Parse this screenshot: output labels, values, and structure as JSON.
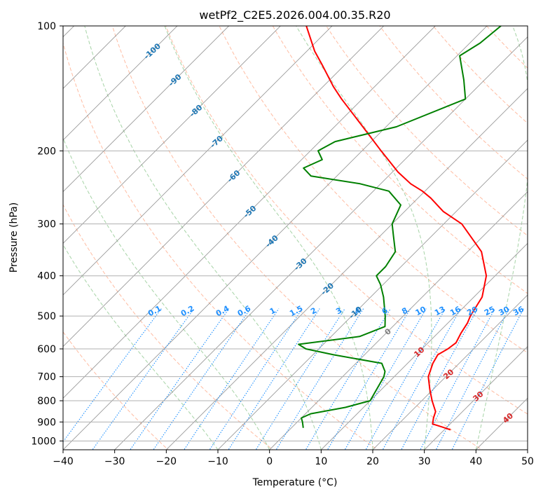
{
  "chart_data": {
    "type": "line",
    "title": "wetPf2_C2E5.2026.004.00.35.R20",
    "xlabel": "Temperature (°C)",
    "ylabel": "Pressure (hPa)",
    "xlim": [
      -40,
      50
    ],
    "ylim": [
      1050,
      100
    ],
    "y_scale": "log",
    "grid": true,
    "x_ticks": [
      "−40",
      "−30",
      "−20",
      "−10",
      "0",
      "10",
      "20",
      "30",
      "40",
      "50"
    ],
    "x_tick_values": [
      -40,
      -30,
      -20,
      -10,
      0,
      10,
      20,
      30,
      40,
      50
    ],
    "y_ticks": [
      "100",
      "200",
      "300",
      "400",
      "500",
      "600",
      "700",
      "800",
      "900",
      "1000"
    ],
    "y_tick_values": [
      100,
      200,
      300,
      400,
      500,
      600,
      700,
      800,
      900,
      1000
    ],
    "series": [
      {
        "role": "temperature",
        "color": "#ff0000",
        "points": [
          [
            940,
            31.2
          ],
          [
            925,
            29.0
          ],
          [
            910,
            26.6
          ],
          [
            880,
            25.6
          ],
          [
            850,
            24.8
          ],
          [
            800,
            22.0
          ],
          [
            750,
            19.3
          ],
          [
            700,
            16.6
          ],
          [
            650,
            14.9
          ],
          [
            620,
            14.2
          ],
          [
            600,
            15.0
          ],
          [
            580,
            15.4
          ],
          [
            550,
            14.5
          ],
          [
            520,
            13.8
          ],
          [
            500,
            13.0
          ],
          [
            450,
            11.6
          ],
          [
            400,
            8.3
          ],
          [
            350,
            2.7
          ],
          [
            300,
            -6.5
          ],
          [
            280,
            -12.5
          ],
          [
            260,
            -17.5
          ],
          [
            250,
            -20.5
          ],
          [
            240,
            -24.2
          ],
          [
            225,
            -28.9
          ],
          [
            200,
            -36.3
          ],
          [
            175,
            -44.5
          ],
          [
            150,
            -54.0
          ],
          [
            140,
            -58.0
          ],
          [
            125,
            -64.0
          ],
          [
            115,
            -68.5
          ],
          [
            100,
            -75.0
          ]
        ]
      },
      {
        "role": "dewpoint",
        "color": "#008000",
        "points": [
          [
            930,
            2.3
          ],
          [
            900,
            1.0
          ],
          [
            880,
            0.0
          ],
          [
            860,
            1.0
          ],
          [
            830,
            6.5
          ],
          [
            800,
            10.0
          ],
          [
            700,
            8.0
          ],
          [
            680,
            7.2
          ],
          [
            650,
            5.0
          ],
          [
            620,
            -6.0
          ],
          [
            600,
            -12.5
          ],
          [
            585,
            -14.8
          ],
          [
            560,
            -4.5
          ],
          [
            530,
            -1.5
          ],
          [
            500,
            -3.5
          ],
          [
            450,
            -7.5
          ],
          [
            420,
            -10.5
          ],
          [
            400,
            -13.0
          ],
          [
            380,
            -13.0
          ],
          [
            350,
            -14.0
          ],
          [
            320,
            -17.5
          ],
          [
            300,
            -20.0
          ],
          [
            270,
            -22.0
          ],
          [
            250,
            -27.0
          ],
          [
            240,
            -34.0
          ],
          [
            230,
            -45.0
          ],
          [
            220,
            -48.0
          ],
          [
            210,
            -46.0
          ],
          [
            200,
            -48.5
          ],
          [
            190,
            -47.0
          ],
          [
            175,
            -38.0
          ],
          [
            150,
            -30.0
          ],
          [
            135,
            -34.0
          ],
          [
            118,
            -39.5
          ],
          [
            110,
            -38.0
          ],
          [
            100,
            -37.3
          ]
        ]
      }
    ],
    "isotherms": {
      "color": "#808080",
      "values": [
        -100,
        -90,
        -80,
        -70,
        -60,
        -50,
        -40,
        -30,
        -20,
        -10,
        0,
        10,
        20,
        30,
        40,
        50
      ]
    },
    "isotherm_labels": [
      {
        "text": "-100",
        "temp": -100,
        "p": 115
      },
      {
        "text": "-90",
        "temp": -90,
        "p": 135
      },
      {
        "text": "-80",
        "temp": -80,
        "p": 160
      },
      {
        "text": "-70",
        "temp": -70,
        "p": 190
      },
      {
        "text": "-60",
        "temp": -60,
        "p": 230
      },
      {
        "text": "-50",
        "temp": -50,
        "p": 280
      },
      {
        "text": "-40",
        "temp": -40,
        "p": 330
      },
      {
        "text": "-30",
        "temp": -30,
        "p": 375
      },
      {
        "text": "-20",
        "temp": -20,
        "p": 430
      },
      {
        "text": "-10",
        "temp": -10,
        "p": 490
      },
      {
        "text": "0",
        "temp": 0,
        "p": 545
      },
      {
        "text": "10",
        "temp": 10,
        "p": 610
      },
      {
        "text": "20",
        "temp": 20,
        "p": 690
      },
      {
        "text": "30",
        "temp": 30,
        "p": 780
      },
      {
        "text": "40",
        "temp": 40,
        "p": 880
      }
    ],
    "isotherm_label_colors": {
      "cold": "#1f77b4",
      "zero": "#7f7f7f",
      "warm": "#d62728"
    },
    "dry_adiabats": {
      "color": "#ffa07a",
      "thetas_K": [
        230,
        250,
        270,
        290,
        310,
        330,
        350,
        370,
        390,
        410,
        430,
        450,
        470,
        490,
        510,
        530,
        550,
        570
      ]
    },
    "moist_adiabats": {
      "color": "#90c890",
      "start_temps_C": [
        -10,
        0,
        10,
        20,
        30,
        40
      ]
    },
    "mixing_ratio_lines": {
      "color": "#1e90ff",
      "values": [
        0.1,
        0.2,
        0.4,
        0.6,
        1,
        1.5,
        2,
        3,
        4,
        6,
        8,
        10,
        13,
        16,
        20,
        25,
        30,
        36
      ],
      "labels": [
        "0.1",
        "0.2",
        "0.4",
        "0.6",
        "1",
        "1.5",
        "2",
        "3",
        "4",
        "6",
        "8",
        "10",
        "13",
        "16",
        "20",
        "25",
        "30",
        "36"
      ],
      "label_pressure": 500
    }
  }
}
